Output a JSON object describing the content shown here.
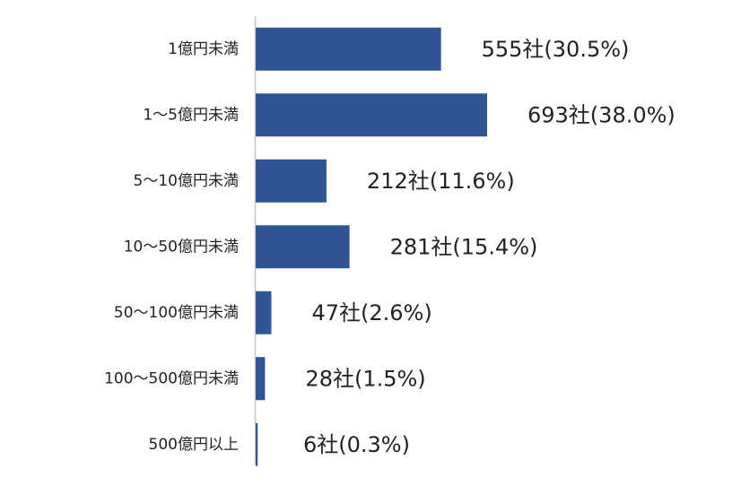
{
  "chart_data": {
    "type": "bar",
    "orientation": "horizontal",
    "categories": [
      "1億円未満",
      "1～5億円未満",
      "5～10億円未満",
      "10～50億円未満",
      "50～100億円未満",
      "100～500億円未満",
      "500億円以上"
    ],
    "values": [
      555,
      693,
      212,
      281,
      47,
      28,
      6
    ],
    "value_labels": [
      "555社(30.5%)",
      "693社(38.0%)",
      "212社(11.6%)",
      "281社(15.4%)",
      "47社(2.6%)",
      "28社(1.5%)",
      "6社(0.3%)"
    ],
    "color": "#2f5597"
  }
}
